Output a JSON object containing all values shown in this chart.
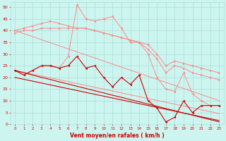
{
  "x": [
    0,
    1,
    2,
    3,
    4,
    5,
    6,
    7,
    8,
    9,
    10,
    11,
    12,
    13,
    14,
    15,
    16,
    17,
    18,
    19,
    20,
    21,
    22,
    23
  ],
  "line_pink1": [
    40,
    41,
    42,
    43,
    44,
    43,
    42,
    41,
    41,
    40,
    39,
    38,
    37,
    36,
    35,
    34,
    30,
    25,
    27,
    26,
    25,
    24,
    23,
    22
  ],
  "line_pink2": [
    39,
    40,
    40,
    41,
    41,
    41,
    41,
    41,
    41,
    40,
    39,
    38,
    37,
    36,
    35,
    32,
    28,
    22,
    25,
    24,
    22,
    21,
    20,
    19
  ],
  "line_pink3": [
    23,
    21,
    23,
    25,
    25,
    24,
    29,
    51,
    45,
    44,
    45,
    46,
    41,
    35,
    35,
    30,
    20,
    15,
    14,
    22,
    13,
    10,
    8,
    8
  ],
  "line_dark1": [
    23,
    21,
    23,
    25,
    25,
    24,
    25,
    29,
    24,
    25,
    20,
    16,
    20,
    17,
    21,
    10,
    7,
    1,
    3,
    10,
    5,
    8,
    8,
    8
  ],
  "trend_pink1": [
    40,
    38.7,
    37.4,
    36.1,
    34.8,
    33.5,
    32.2,
    30.9,
    29.6,
    28.3,
    27.0,
    25.7,
    24.4,
    23.1,
    21.8,
    20.5,
    19.2,
    17.9,
    16.6,
    15.3,
    14.0,
    12.7,
    11.4,
    10.1
  ],
  "trend_pink2": [
    23,
    22.2,
    21.4,
    20.6,
    19.8,
    19.0,
    18.2,
    17.4,
    16.6,
    15.8,
    15.0,
    14.2,
    13.4,
    12.6,
    11.8,
    11.0,
    10.2,
    9.4,
    8.6,
    7.8,
    7.0,
    6.2,
    5.4,
    4.6
  ],
  "trend_dark1": [
    23,
    22.0,
    21.0,
    20.0,
    19.1,
    18.1,
    17.2,
    16.2,
    15.3,
    14.3,
    13.4,
    12.4,
    11.5,
    10.5,
    9.6,
    8.6,
    7.7,
    6.7,
    5.8,
    4.8,
    3.9,
    2.9,
    2.0,
    1.0
  ],
  "trend_dark2": [
    20,
    19.2,
    18.4,
    17.6,
    16.8,
    16.0,
    15.2,
    14.4,
    13.6,
    12.8,
    12.0,
    11.2,
    10.4,
    9.6,
    8.8,
    8.0,
    7.2,
    6.4,
    5.6,
    4.8,
    4.0,
    3.2,
    2.4,
    1.6
  ],
  "bg_color": "#cdf5f0",
  "grid_color": "#a8ddd8",
  "pink": "#ff8888",
  "dark": "#cc0000",
  "xlabel": "Vent moyen/en rafales ( km/h )",
  "xlabel_color": "#cc0000",
  "tick_color": "#cc0000",
  "yticks": [
    0,
    5,
    10,
    15,
    20,
    25,
    30,
    35,
    40,
    45,
    50
  ],
  "ylim": [
    0,
    52
  ],
  "xlim": [
    -0.5,
    23.5
  ]
}
